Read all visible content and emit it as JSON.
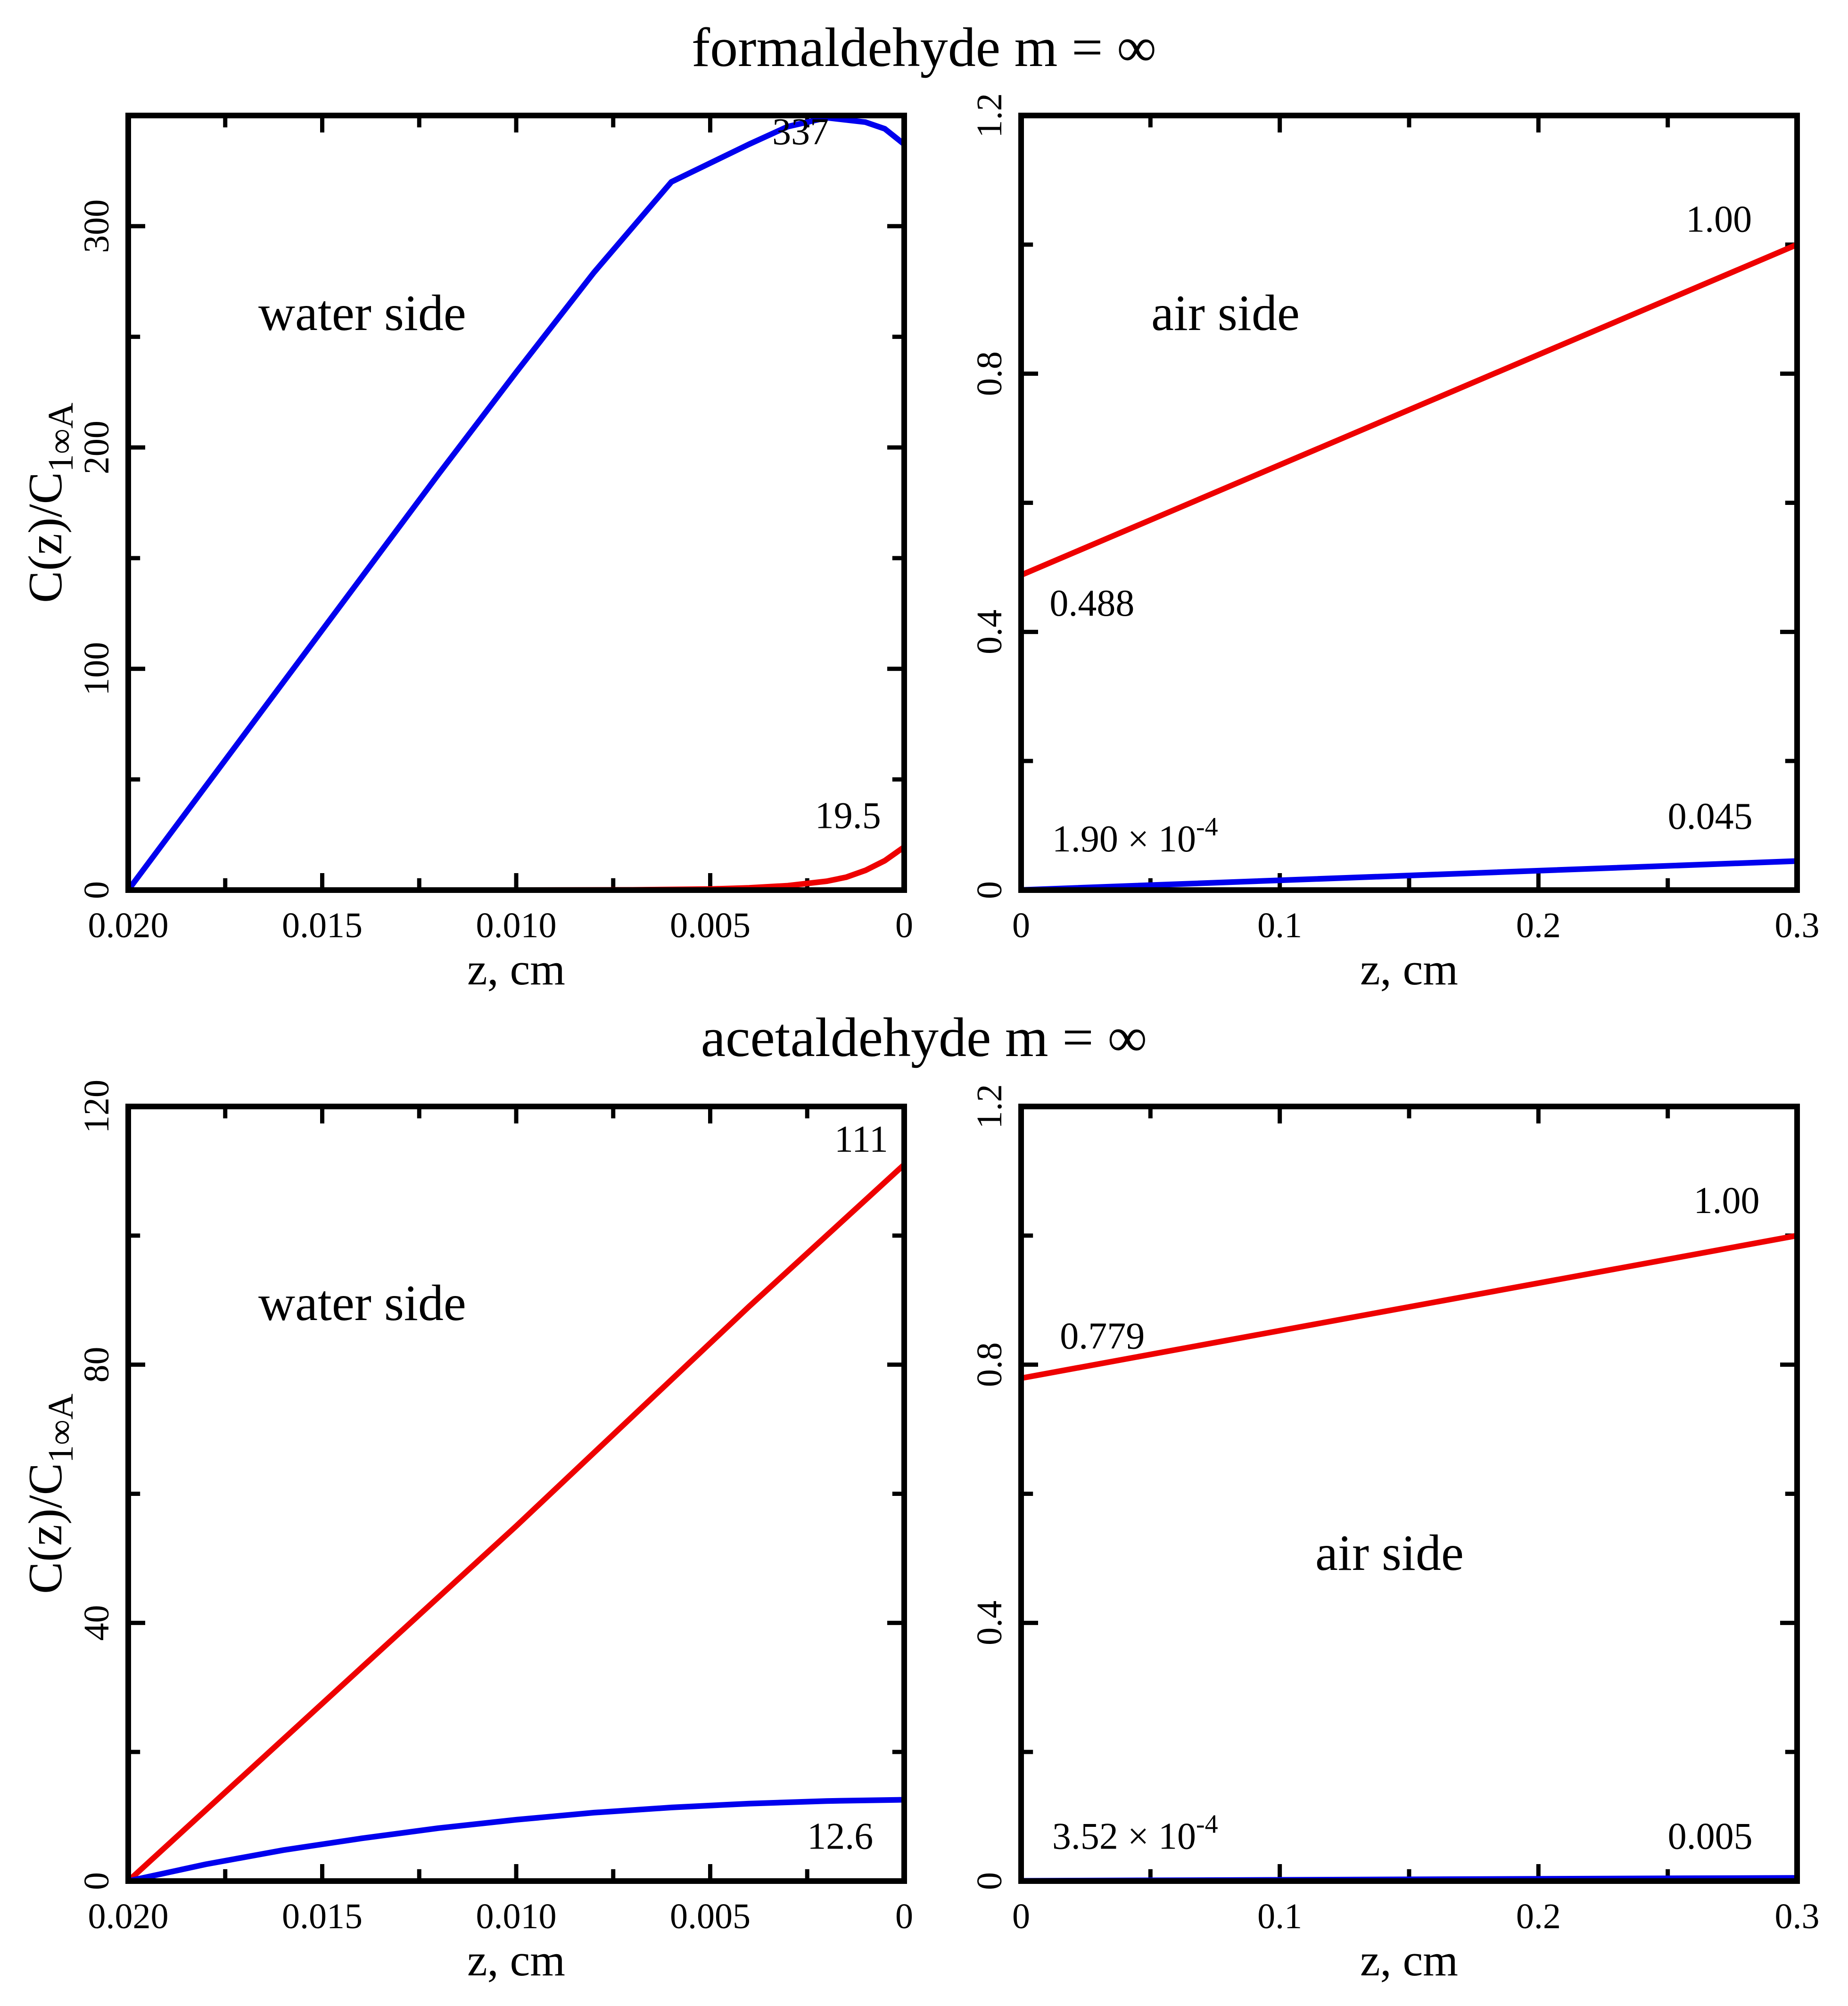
{
  "chart_data": [
    {
      "type": "line",
      "title": "formaldehyde m = ∞",
      "panel": "water side",
      "xlabel": "z, cm",
      "ylabel_main": "C(z)/C",
      "ylabel_sub": "1∞A",
      "xlim": [
        0.02,
        0
      ],
      "ylim": [
        0,
        350
      ],
      "xticks": [
        0.02,
        0.015,
        0.01,
        0.005,
        0
      ],
      "xtick_labels": [
        "0.020",
        "0.015",
        "0.010",
        "0.005",
        "0"
      ],
      "yticks": [
        0,
        100,
        200,
        300
      ],
      "ytick_labels": [
        "0",
        "100",
        "200",
        "300"
      ],
      "series": [
        {
          "name": "blue",
          "color": "#0000ee",
          "x": [
            0.02,
            0.018,
            0.016,
            0.014,
            0.012,
            0.01,
            0.008,
            0.006,
            0.004,
            0.003,
            0.002,
            0.001,
            0.0005,
            0
          ],
          "y": [
            0,
            47,
            94,
            141,
            188,
            234,
            279,
            320,
            337,
            345,
            349,
            347,
            344,
            337
          ]
        },
        {
          "name": "red",
          "color": "#ee0000",
          "x": [
            0.02,
            0.01,
            0.007,
            0.005,
            0.004,
            0.003,
            0.002,
            0.0015,
            0.001,
            0.0005,
            0
          ],
          "y": [
            0,
            0,
            0.1,
            0.5,
            1.0,
            2.0,
            4.0,
            5.8,
            8.9,
            13.3,
            19.5
          ]
        }
      ],
      "annotations": [
        {
          "text": "337",
          "x": 0.0034,
          "y": 337
        },
        {
          "text": "19.5",
          "x": 0.0023,
          "y": 28
        }
      ]
    },
    {
      "type": "line",
      "panel": "air side",
      "xlabel": "z, cm",
      "xlim": [
        0,
        0.3
      ],
      "ylim": [
        0,
        1.2
      ],
      "xticks": [
        0,
        0.1,
        0.2,
        0.3
      ],
      "xtick_labels": [
        "0",
        "0.1",
        "0.2",
        "0.3"
      ],
      "yticks": [
        0,
        0.4,
        0.8,
        1.2
      ],
      "ytick_labels": [
        "0",
        "0.4",
        "0.8",
        "1.2"
      ],
      "series": [
        {
          "name": "red",
          "color": "#ee0000",
          "x": [
            0,
            0.3
          ],
          "y": [
            0.488,
            1.0
          ]
        },
        {
          "name": "blue",
          "color": "#0000ee",
          "x": [
            0,
            0.3
          ],
          "y": [
            0.00019,
            0.045
          ]
        }
      ],
      "annotations": [
        {
          "text": "1.00",
          "x": 0.257,
          "y": 1.02
        },
        {
          "text": "0.488",
          "x": 0.011,
          "y": 0.425
        },
        {
          "text": "0.045",
          "x": 0.25,
          "y": 0.095
        },
        {
          "text": "1.90 × 10",
          "sup": "-4",
          "x": 0.012,
          "y": 0.06
        }
      ]
    },
    {
      "type": "line",
      "title": "acetaldehyde m = ∞",
      "panel": "water side",
      "xlabel": "z, cm",
      "ylabel_main": "C(z)/C",
      "ylabel_sub": "1∞A",
      "xlim": [
        0.02,
        0
      ],
      "ylim": [
        0,
        120
      ],
      "xticks": [
        0.02,
        0.015,
        0.01,
        0.005,
        0
      ],
      "xtick_labels": [
        "0.020",
        "0.015",
        "0.010",
        "0.005",
        "0"
      ],
      "yticks": [
        0,
        40,
        80,
        120
      ],
      "ytick_labels": [
        "0",
        "40",
        "80",
        "120"
      ],
      "series": [
        {
          "name": "red",
          "color": "#ee0000",
          "x": [
            0.02,
            0.01,
            0.004,
            0
          ],
          "y": [
            0,
            55,
            89,
            111
          ]
        },
        {
          "name": "blue",
          "color": "#0000ee",
          "x": [
            0.02,
            0.018,
            0.016,
            0.014,
            0.012,
            0.01,
            0.008,
            0.006,
            0.004,
            0.002,
            0
          ],
          "y": [
            0,
            2.6,
            4.8,
            6.6,
            8.2,
            9.5,
            10.6,
            11.4,
            12.0,
            12.4,
            12.6
          ]
        }
      ],
      "annotations": [
        {
          "text": "111",
          "x": 0.0018,
          "y": 113
        },
        {
          "text": "12.6",
          "x": 0.0025,
          "y": 5
        }
      ]
    },
    {
      "type": "line",
      "panel": "air side",
      "xlabel": "z, cm",
      "xlim": [
        0,
        0.3
      ],
      "ylim": [
        0,
        1.2
      ],
      "xticks": [
        0,
        0.1,
        0.2,
        0.3
      ],
      "xtick_labels": [
        "0",
        "0.1",
        "0.2",
        "0.3"
      ],
      "yticks": [
        0,
        0.4,
        0.8,
        1.2
      ],
      "ytick_labels": [
        "0",
        "0.4",
        "0.8",
        "1.2"
      ],
      "series": [
        {
          "name": "red",
          "color": "#ee0000",
          "x": [
            0,
            0.3
          ],
          "y": [
            0.779,
            1.0
          ]
        },
        {
          "name": "blue",
          "color": "#0000ee",
          "x": [
            0,
            0.3
          ],
          "y": [
            0.000352,
            0.005
          ]
        }
      ],
      "annotations": [
        {
          "text": "1.00",
          "x": 0.26,
          "y": 1.035
        },
        {
          "text": "0.779",
          "x": 0.015,
          "y": 0.825
        },
        {
          "text": "0.005",
          "x": 0.25,
          "y": 0.05
        },
        {
          "text": "3.52 × 10",
          "sup": "-4",
          "x": 0.012,
          "y": 0.05
        }
      ]
    }
  ]
}
